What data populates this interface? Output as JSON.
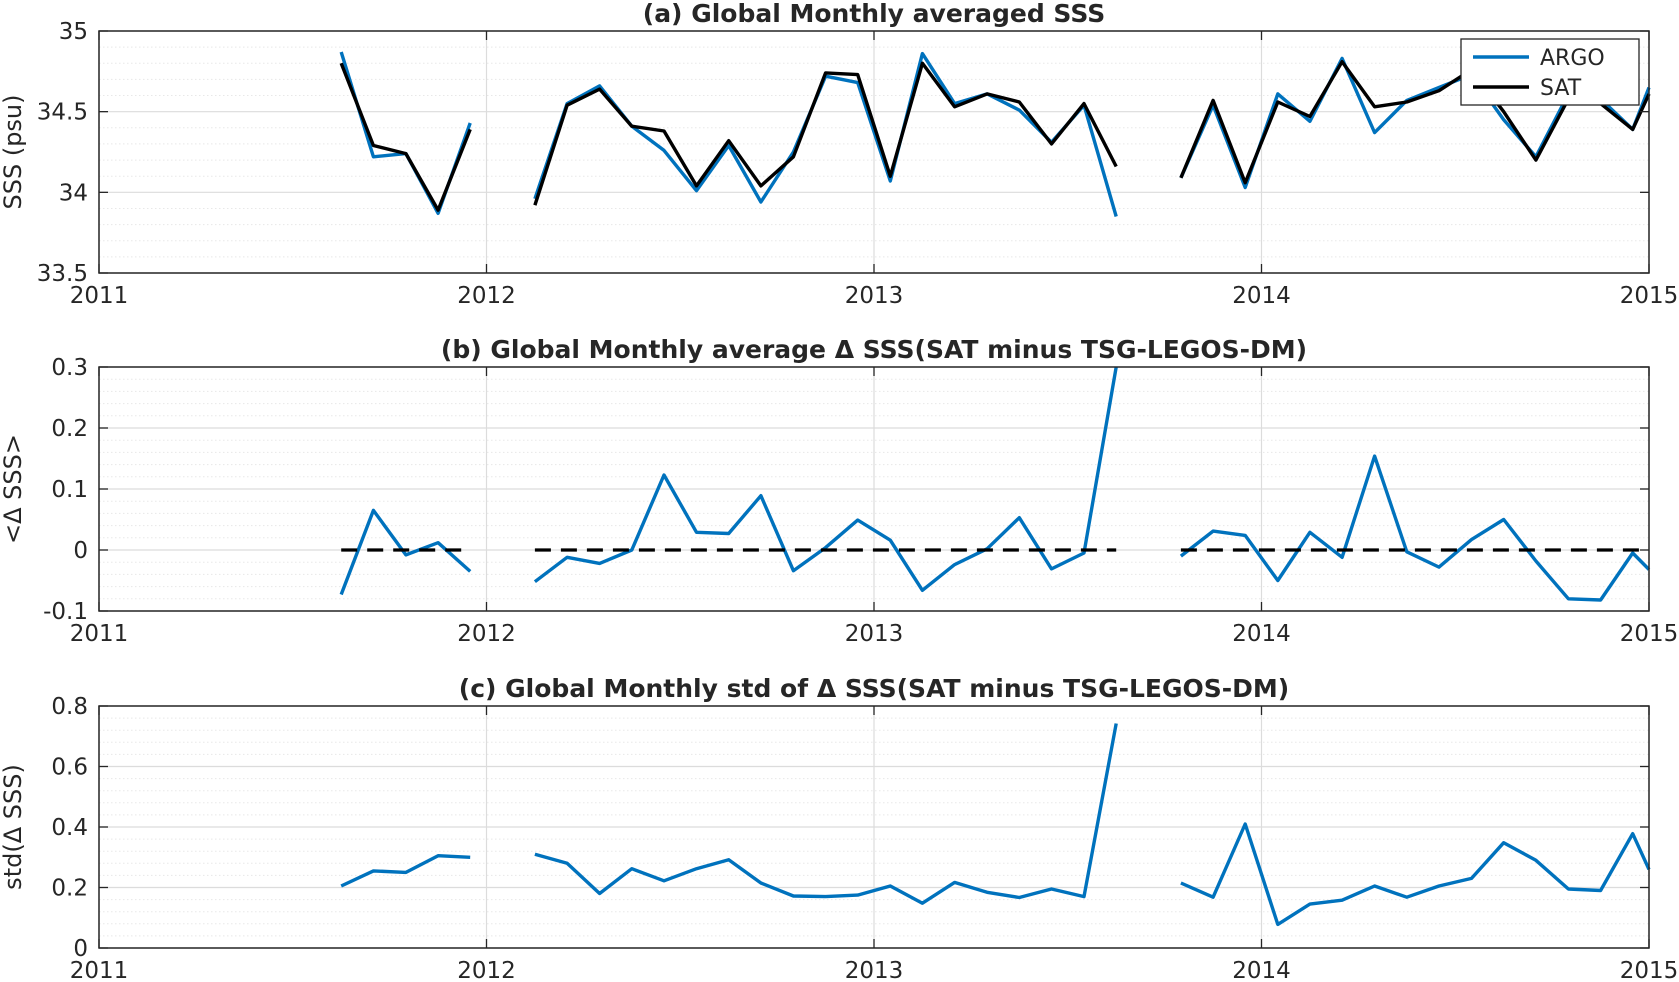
{
  "colors": {
    "argo": "#0072BD",
    "sat": "#000000",
    "axis": "#262626",
    "grid": "#dcdcdc",
    "minor_grid": "#e8e8e8"
  },
  "chart_data": [
    {
      "id": "a",
      "type": "line",
      "title": "(a) Global Monthly averaged SSS",
      "ylabel": "SSS (psu)",
      "xlabel": "",
      "xlim": [
        2011,
        2015
      ],
      "ylim": [
        33.5,
        35
      ],
      "yticks": [
        33.5,
        34,
        34.5,
        35
      ],
      "ytick_labels": [
        "33.5",
        "34",
        "34.5",
        "35"
      ],
      "xticks": [
        2011,
        2012,
        2013,
        2014,
        2015
      ],
      "xtick_labels": [
        "2011",
        "2012",
        "2013",
        "2014",
        "2015"
      ],
      "grid": true,
      "minor_grid": true,
      "legend": {
        "position": "top-right",
        "entries": [
          "ARGO",
          "SAT"
        ]
      },
      "series": [
        {
          "name": "ARGO",
          "color": "#0072BD",
          "segments": [
            {
              "x": [
                2011.625,
                2011.708,
                2011.792,
                2011.875,
                2011.958
              ],
              "y": [
                34.87,
                34.22,
                34.24,
                33.87,
                34.43
              ]
            },
            {
              "x": [
                2012.125,
                2012.208,
                2012.292,
                2012.375,
                2012.458,
                2012.542,
                2012.625,
                2012.708,
                2012.792,
                2012.875,
                2012.958,
                2013.042,
                2013.125,
                2013.208,
                2013.292,
                2013.375,
                2013.458,
                2013.542,
                2013.625
              ],
              "y": [
                33.96,
                34.55,
                34.66,
                34.41,
                34.26,
                34.01,
                34.29,
                33.94,
                34.25,
                34.72,
                34.68,
                34.07,
                34.86,
                34.55,
                34.61,
                34.51,
                34.31,
                34.54,
                33.85
              ]
            },
            {
              "x": [
                2013.792,
                2013.875,
                2013.958,
                2014.042,
                2014.125,
                2014.208,
                2014.292,
                2014.375,
                2014.458,
                2014.542,
                2014.625,
                2014.708,
                2014.792,
                2014.875,
                2014.958,
                2015.0
              ],
              "y": [
                34.09,
                34.54,
                34.03,
                34.61,
                34.44,
                34.83,
                34.37,
                34.57,
                34.65,
                34.73,
                34.45,
                34.22,
                34.61,
                34.58,
                34.39,
                34.65
              ]
            }
          ]
        },
        {
          "name": "SAT",
          "color": "#000000",
          "segments": [
            {
              "x": [
                2011.625,
                2011.708,
                2011.792,
                2011.875,
                2011.958
              ],
              "y": [
                34.8,
                34.29,
                34.24,
                33.89,
                34.39
              ]
            },
            {
              "x": [
                2012.125,
                2012.208,
                2012.292,
                2012.375,
                2012.458,
                2012.542,
                2012.625,
                2012.708,
                2012.792,
                2012.875,
                2012.958,
                2013.042,
                2013.125,
                2013.208,
                2013.292,
                2013.375,
                2013.458,
                2013.542,
                2013.625
              ],
              "y": [
                33.92,
                34.54,
                34.64,
                34.41,
                34.38,
                34.04,
                34.32,
                34.04,
                34.22,
                34.74,
                34.73,
                34.1,
                34.8,
                34.53,
                34.61,
                34.56,
                34.3,
                34.55,
                34.16
              ]
            },
            {
              "x": [
                2013.792,
                2013.875,
                2013.958,
                2014.042,
                2014.125,
                2014.208,
                2014.292,
                2014.375,
                2014.458,
                2014.542,
                2014.625,
                2014.708,
                2014.792,
                2014.875,
                2014.958,
                2015.0
              ],
              "y": [
                34.09,
                34.57,
                34.06,
                34.56,
                34.47,
                34.81,
                34.53,
                34.56,
                34.63,
                34.76,
                34.5,
                34.2,
                34.58,
                34.55,
                34.39,
                34.61
              ]
            }
          ]
        }
      ]
    },
    {
      "id": "b",
      "type": "line",
      "title": "(b) Global Monthly average Δ SSS(SAT minus TSG-LEGOS-DM)",
      "ylabel": "<Δ SSS>",
      "xlabel": "",
      "xlim": [
        2011,
        2015
      ],
      "ylim": [
        -0.1,
        0.3
      ],
      "yticks": [
        -0.1,
        0,
        0.1,
        0.2,
        0.3
      ],
      "ytick_labels": [
        "-0.1",
        "0",
        "0.1",
        "0.2",
        "0.3"
      ],
      "xticks": [
        2011,
        2012,
        2013,
        2014,
        2015
      ],
      "xtick_labels": [
        "2011",
        "2012",
        "2013",
        "2014",
        "2015"
      ],
      "grid": true,
      "minor_grid": true,
      "series": [
        {
          "color": "#0072BD",
          "segments": [
            {
              "x": [
                2011.625,
                2011.708,
                2011.792,
                2011.875,
                2011.958
              ],
              "y": [
                -0.073,
                0.065,
                -0.008,
                0.012,
                -0.035
              ]
            },
            {
              "x": [
                2012.125,
                2012.208,
                2012.292,
                2012.375,
                2012.458,
                2012.542,
                2012.625,
                2012.708,
                2012.792,
                2012.875,
                2012.958,
                2013.042,
                2013.125,
                2013.208,
                2013.292,
                2013.375,
                2013.458,
                2013.542,
                2013.625
              ],
              "y": [
                -0.052,
                -0.012,
                -0.022,
                0.0,
                0.123,
                0.029,
                0.027,
                0.089,
                -0.034,
                0.004,
                0.049,
                0.016,
                -0.066,
                -0.024,
                0.002,
                0.053,
                -0.031,
                -0.005,
                0.3
              ]
            },
            {
              "x": [
                2013.792,
                2013.875,
                2013.958,
                2014.042,
                2014.125,
                2014.208,
                2014.292,
                2014.375,
                2014.458,
                2014.542,
                2014.625,
                2014.708,
                2014.792,
                2014.875,
                2014.958,
                2015.0
              ],
              "y": [
                -0.01,
                0.031,
                0.024,
                -0.05,
                0.029,
                -0.012,
                0.154,
                -0.003,
                -0.028,
                0.017,
                0.05,
                -0.018,
                -0.08,
                -0.082,
                -0.005,
                -0.032
              ]
            }
          ]
        },
        {
          "color": "#000000",
          "dashed": true,
          "segments": [
            {
              "x": [
                2011.625,
                2011.958
              ],
              "y": [
                0,
                0
              ]
            },
            {
              "x": [
                2012.125,
                2013.625
              ],
              "y": [
                0,
                0
              ]
            },
            {
              "x": [
                2013.792,
                2015.0
              ],
              "y": [
                0,
                0
              ]
            }
          ]
        }
      ]
    },
    {
      "id": "c",
      "type": "line",
      "title": "(c) Global Monthly std of Δ SSS(SAT minus TSG-LEGOS-DM)",
      "ylabel": "std(Δ SSS)",
      "xlabel": "",
      "xlim": [
        2011,
        2015
      ],
      "ylim": [
        0,
        0.8
      ],
      "yticks": [
        0,
        0.2,
        0.4,
        0.6,
        0.8
      ],
      "ytick_labels": [
        "0",
        "0.2",
        "0.4",
        "0.6",
        "0.8"
      ],
      "xticks": [
        2011,
        2012,
        2013,
        2014,
        2015
      ],
      "xtick_labels": [
        "2011",
        "2012",
        "2013",
        "2014",
        "2015"
      ],
      "grid": true,
      "minor_grid": true,
      "series": [
        {
          "color": "#0072BD",
          "segments": [
            {
              "x": [
                2011.625,
                2011.708,
                2011.792,
                2011.875,
                2011.958
              ],
              "y": [
                0.205,
                0.255,
                0.25,
                0.305,
                0.3
              ]
            },
            {
              "x": [
                2012.125,
                2012.208,
                2012.292,
                2012.375,
                2012.458,
                2012.542,
                2012.625,
                2012.708,
                2012.792,
                2012.875,
                2012.958,
                2013.042,
                2013.125,
                2013.208,
                2013.292,
                2013.375,
                2013.458,
                2013.542,
                2013.625
              ],
              "y": [
                0.31,
                0.28,
                0.18,
                0.262,
                0.222,
                0.262,
                0.292,
                0.215,
                0.172,
                0.17,
                0.175,
                0.205,
                0.148,
                0.217,
                0.184,
                0.167,
                0.195,
                0.17,
                0.742
              ]
            },
            {
              "x": [
                2013.792,
                2013.875,
                2013.958,
                2014.042,
                2014.125,
                2014.208,
                2014.292,
                2014.375,
                2014.458,
                2014.542,
                2014.625,
                2014.708,
                2014.792,
                2014.875,
                2014.958,
                2015.0
              ],
              "y": [
                0.215,
                0.168,
                0.41,
                0.078,
                0.145,
                0.158,
                0.205,
                0.168,
                0.205,
                0.23,
                0.348,
                0.29,
                0.195,
                0.19,
                0.378,
                0.26
              ]
            }
          ]
        }
      ]
    }
  ]
}
